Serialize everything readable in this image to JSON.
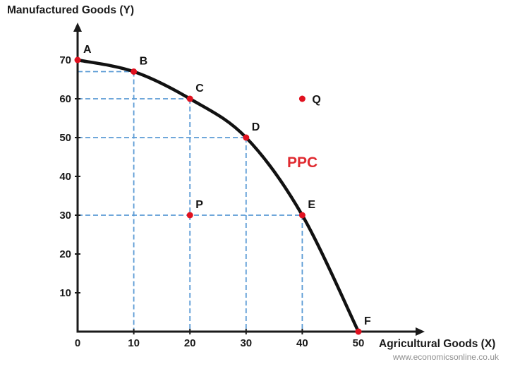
{
  "page": {
    "watermark": "www.economicsonline.co.uk",
    "background": "#ffffff"
  },
  "chart_data": {
    "type": "line",
    "title": "",
    "xlabel": "Agricultural Goods (X)",
    "ylabel": "Manufactured Goods (Y)",
    "xlim": [
      0,
      50
    ],
    "ylim": [
      0,
      70
    ],
    "xticks": [
      0,
      10,
      20,
      30,
      40,
      50
    ],
    "yticks": [
      10,
      20,
      30,
      40,
      50,
      60,
      70
    ],
    "grid": false,
    "legend": "none",
    "axis_color": "#1a1a1a",
    "point_color": "#e0111f",
    "curve_label": {
      "text": "PPC",
      "color": "#e02a30"
    },
    "guides": {
      "color": "#5b9bd5",
      "style": "dashed"
    },
    "series": [
      {
        "name": "PPC",
        "color": "#111111",
        "points": [
          {
            "label": "A",
            "x": 0,
            "y": 70,
            "guides": false
          },
          {
            "label": "B",
            "x": 10,
            "y": 67,
            "guides": true
          },
          {
            "label": "C",
            "x": 20,
            "y": 60,
            "guides": true
          },
          {
            "label": "D",
            "x": 30,
            "y": 50,
            "guides": true
          },
          {
            "label": "E",
            "x": 40,
            "y": 30,
            "guides": true
          },
          {
            "label": "F",
            "x": 50,
            "y": 0,
            "guides": false
          }
        ]
      }
    ],
    "extra_points": [
      {
        "label": "P",
        "x": 20,
        "y": 30,
        "position": "inside curve"
      },
      {
        "label": "Q",
        "x": 40,
        "y": 60,
        "position": "outside curve",
        "label_pos": "right"
      }
    ]
  }
}
